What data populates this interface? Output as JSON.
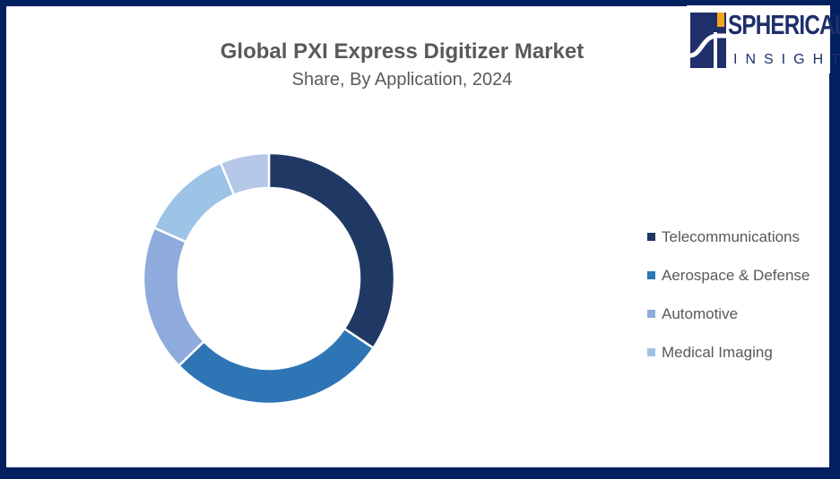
{
  "chart_data": {
    "type": "pie",
    "donut": true,
    "title": "Global PXI Express Digitizer Market",
    "subtitle": "Share, By Application, 2024",
    "legend_position": "right",
    "slices": [
      {
        "name": "Telecommunications",
        "value": 34.4,
        "color": "#1f3864"
      },
      {
        "name": "Aerospace & Defense",
        "value": 28.4,
        "color": "#2e75b6"
      },
      {
        "name": "Automotive",
        "value": 18.9,
        "color": "#8faadc"
      },
      {
        "name": "Medical Imaging",
        "value": 12.1,
        "color": "#9dc3e6"
      },
      {
        "value": 6.3,
        "color": "#b4c7e7"
      }
    ]
  },
  "logo": {
    "line1": "SPHERICAL",
    "line2": "INSIGHTS"
  },
  "frame_color": "#002060"
}
